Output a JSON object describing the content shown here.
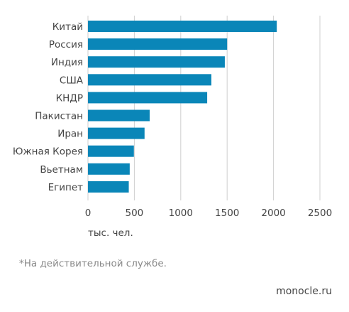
{
  "chart_data": {
    "type": "bar",
    "orientation": "horizontal",
    "categories": [
      "Китай",
      "Россия",
      "Индия",
      "США",
      "КНДР",
      "Пакистан",
      "Иран",
      "Южная Корея",
      "Вьетнам",
      "Египет"
    ],
    "values": [
      2035,
      1500,
      1475,
      1330,
      1285,
      665,
      610,
      495,
      450,
      440
    ],
    "xlim": [
      0,
      2500
    ],
    "xticks": [
      "0",
      "500",
      "1000",
      "1500",
      "2000",
      "2500"
    ],
    "xlabel": "тыс. чел.",
    "grid": "vertical",
    "bar_color": "#0a86b8"
  },
  "footnote": "*На действительной службе.",
  "source": "monocle.ru"
}
